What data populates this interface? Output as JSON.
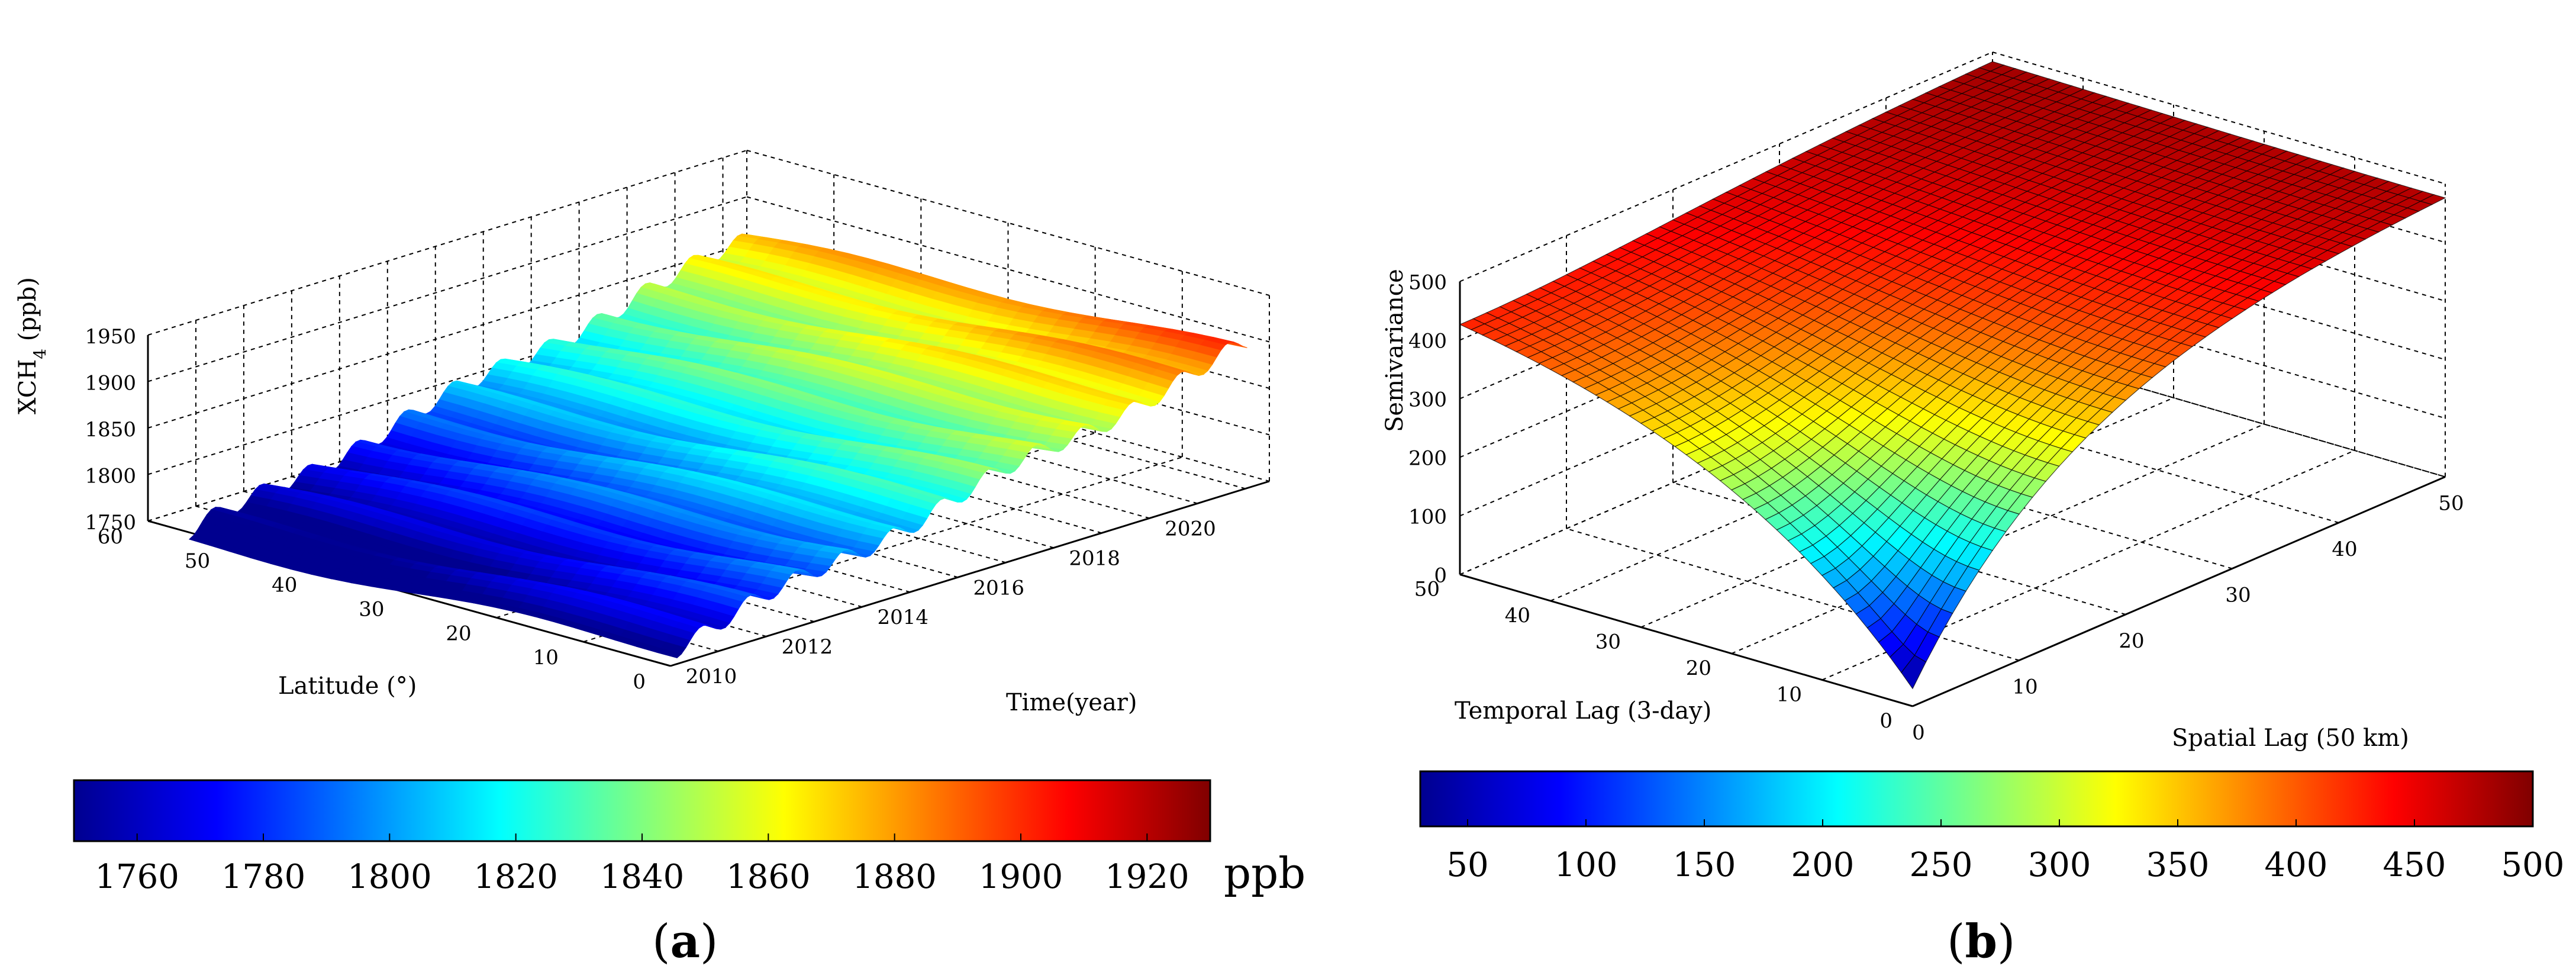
{
  "chart_data": [
    {
      "panel_label": "a",
      "type": "surface",
      "zlabel_main": "XCH",
      "zlabel_sub": "4",
      "zlabel_unit": " (ppb)",
      "ylabel": "Latitude (°)",
      "xlabel": "Time(year)",
      "z_ticks": [
        "1750",
        "1800",
        "1850",
        "1900",
        "1950"
      ],
      "lat_ticks": [
        "0",
        "10",
        "20",
        "30",
        "40",
        "50",
        "60"
      ],
      "time_ticks": [
        "2010",
        "2012",
        "2014",
        "2016",
        "2018",
        "2020"
      ],
      "zlim": [
        1750,
        1950
      ],
      "latlim": [
        0,
        60
      ],
      "timelim": [
        2009,
        2021.5
      ],
      "colorbar": {
        "range": [
          1750,
          1930
        ],
        "ticks": [
          "1760",
          "1780",
          "1800",
          "1820",
          "1840",
          "1860",
          "1880",
          "1900",
          "1920"
        ],
        "unit": "ppb"
      },
      "grid": true
    },
    {
      "panel_label": "b",
      "type": "surface",
      "zlabel": "Semivariance",
      "ylabel": "Temporal Lag (3-day)",
      "xlabel": "Spatial Lag (50 km)",
      "z_ticks": [
        "0",
        "100",
        "200",
        "300",
        "400",
        "500"
      ],
      "temporal_ticks": [
        "0",
        "10",
        "20",
        "30",
        "40",
        "50"
      ],
      "spatial_ticks": [
        "0",
        "10",
        "20",
        "30",
        "40",
        "50"
      ],
      "zlim": [
        0,
        500
      ],
      "colorbar": {
        "range": [
          30,
          500
        ],
        "ticks": [
          "50",
          "100",
          "150",
          "200",
          "250",
          "300",
          "350",
          "400",
          "450",
          "500"
        ]
      },
      "grid": true
    }
  ],
  "colors": {
    "jet": [
      "#00008f",
      "#0000ff",
      "#00ffff",
      "#ffff00",
      "#ff0000",
      "#800000"
    ]
  }
}
